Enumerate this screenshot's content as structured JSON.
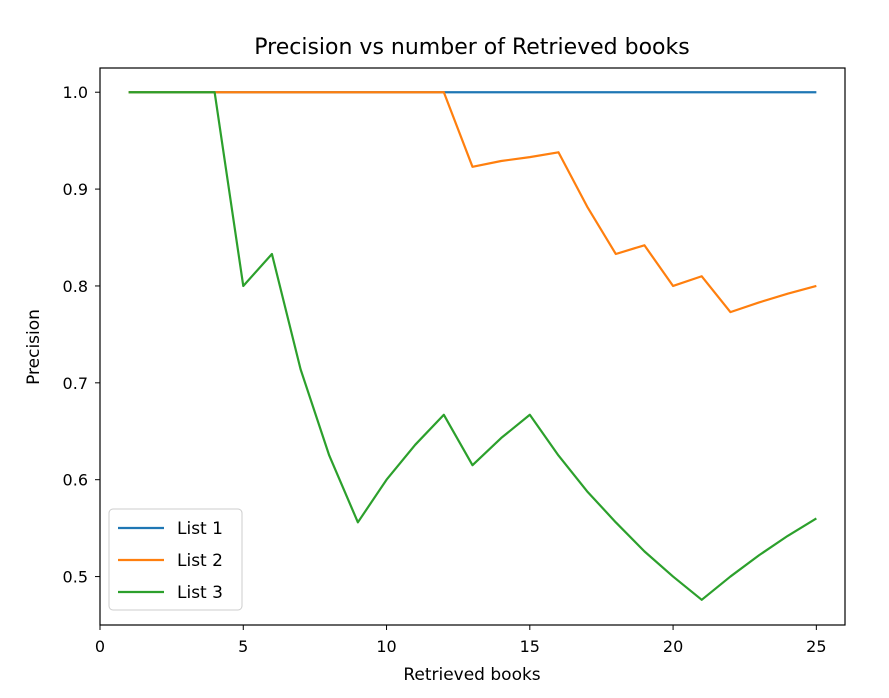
{
  "chart_data": {
    "type": "line",
    "title": "Precision vs number of Retrieved books",
    "xlabel": "Retrieved books",
    "ylabel": "Precision",
    "xlim": [
      0,
      26
    ],
    "ylim": [
      0.45,
      1.025
    ],
    "x_ticks": [
      0,
      5,
      10,
      15,
      20,
      25
    ],
    "y_ticks": [
      0.5,
      0.6,
      0.7,
      0.8,
      0.9,
      1.0
    ],
    "x_tick_labels": [
      "0",
      "5",
      "10",
      "15",
      "20",
      "25"
    ],
    "y_tick_labels": [
      "0.5",
      "0.6",
      "0.7",
      "0.8",
      "0.9",
      "1.0"
    ],
    "grid": false,
    "legend_position": "bottom-left",
    "x": [
      1,
      2,
      3,
      4,
      5,
      6,
      7,
      8,
      9,
      10,
      11,
      12,
      13,
      14,
      15,
      16,
      17,
      18,
      19,
      20,
      21,
      22,
      23,
      24,
      25
    ],
    "series": [
      {
        "name": "List 1",
        "color": "#1f77b4",
        "values": [
          1.0,
          1.0,
          1.0,
          1.0,
          1.0,
          1.0,
          1.0,
          1.0,
          1.0,
          1.0,
          1.0,
          1.0,
          1.0,
          1.0,
          1.0,
          1.0,
          1.0,
          1.0,
          1.0,
          1.0,
          1.0,
          1.0,
          1.0,
          1.0,
          1.0
        ]
      },
      {
        "name": "List 2",
        "color": "#ff7f0e",
        "values": [
          1.0,
          1.0,
          1.0,
          1.0,
          1.0,
          1.0,
          1.0,
          1.0,
          1.0,
          1.0,
          1.0,
          1.0,
          0.923,
          0.929,
          0.933,
          0.938,
          0.882,
          0.833,
          0.842,
          0.8,
          0.81,
          0.773,
          0.783,
          0.792,
          0.8
        ]
      },
      {
        "name": "List 3",
        "color": "#2ca02c",
        "values": [
          1.0,
          1.0,
          1.0,
          1.0,
          0.8,
          0.833,
          0.714,
          0.625,
          0.556,
          0.6,
          0.636,
          0.667,
          0.615,
          0.643,
          0.667,
          0.625,
          0.588,
          0.556,
          0.526,
          0.5,
          0.476,
          0.5,
          0.522,
          0.542,
          0.56
        ]
      }
    ]
  }
}
